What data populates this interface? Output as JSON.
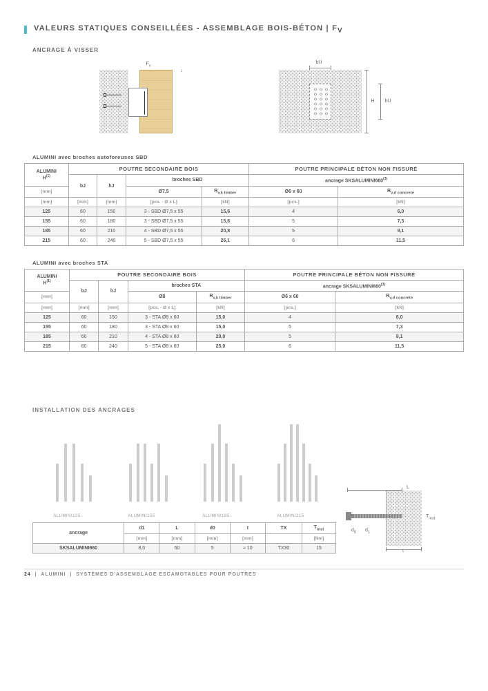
{
  "title": "VALEURS STATIQUES CONSEILLÉES - ASSEMBLAGE BOIS-BÉTON | F",
  "title_sub": "v",
  "subtitle_anchor": "ANCRAGE À VISSER",
  "diag_fv_label": "Fv",
  "diag_bu_label": "bU",
  "diag_hu_label": "hU",
  "diag_H_label": "H",
  "table1_caption": "ALUMINI avec broches autoforeuses SBD",
  "table2_caption": "ALUMINI avec broches STA",
  "group_secondary": "POUTRE SECONDAIRE BOIS",
  "group_primary": "POUTRE PRINCIPALE BÉTON NON FISSURÉ",
  "col_alumini": "ALUMINI",
  "col_H": "H",
  "sup1": "(1)",
  "col_bJ": "bJ",
  "col_hJ": "hJ",
  "col_broches_sbd": "broches SBD",
  "col_broches_sta": "broches STA",
  "col_d75": "Ø7,5",
  "col_d8": "Ø8",
  "col_Rvk": "R",
  "col_Rvk_sub": "v,k timber",
  "col_anchor": "ancrage SKSALUMINI660",
  "sup3": "(3)",
  "col_d6x60": "Ø6 x 60",
  "col_Rvd": "R",
  "col_Rvd_sub": "v,d concrete",
  "unit_mm": "[mm]",
  "unit_pcs_dl": "[pcs. - Ø x L]",
  "unit_pcs": "[pcs.]",
  "unit_kn": "[kN]",
  "t1_rows": [
    {
      "H": "125",
      "bJ": "60",
      "hJ": "150",
      "d": "3 - SBD Ø7,5 x 55",
      "rvk": "15,6",
      "an": "4",
      "rvd": "6,0"
    },
    {
      "H": "155",
      "bJ": "60",
      "hJ": "180",
      "d": "3 - SBD Ø7,5 x 55",
      "rvk": "15,6",
      "an": "5",
      "rvd": "7,3"
    },
    {
      "H": "185",
      "bJ": "60",
      "hJ": "210",
      "d": "4 - SBD Ø7,5 x 55",
      "rvk": "20,8",
      "an": "5",
      "rvd": "9,1"
    },
    {
      "H": "215",
      "bJ": "60",
      "hJ": "240",
      "d": "5 - SBD Ø7,5 x 55",
      "rvk": "26,1",
      "an": "6",
      "rvd": "11,5"
    }
  ],
  "t2_rows": [
    {
      "H": "125",
      "bJ": "60",
      "hJ": "150",
      "d": "3 - STA Ø8 x 60",
      "rvk": "15,0",
      "an": "4",
      "rvd": "6,0"
    },
    {
      "H": "155",
      "bJ": "60",
      "hJ": "180",
      "d": "3 - STA Ø8 x 60",
      "rvk": "15,0",
      "an": "5",
      "rvd": "7,3"
    },
    {
      "H": "185",
      "bJ": "60",
      "hJ": "210",
      "d": "4 - STA Ø8 x 60",
      "rvk": "20,0",
      "an": "5",
      "rvd": "9,1"
    },
    {
      "H": "215",
      "bJ": "60",
      "hJ": "240",
      "d": "5 - STA Ø8 x 60",
      "rvk": "25,0",
      "an": "6",
      "rvd": "11,5"
    }
  ],
  "install_title": "INSTALLATION DES ANCRAGES",
  "install_labels": [
    "ALUMINI125",
    "ALUMINI155",
    "ALUMINI185",
    "ALUMINI215"
  ],
  "install_bar_heights": [
    [
      55,
      84,
      84,
      55,
      38
    ],
    [
      55,
      84,
      84,
      55,
      84,
      38
    ],
    [
      55,
      84,
      112,
      84,
      55,
      38
    ],
    [
      55,
      84,
      112,
      112,
      84,
      55,
      38
    ]
  ],
  "anchor_col_label": "ancrage",
  "anchor_cols": [
    "d1",
    "L",
    "d0",
    "t",
    "TX",
    "Tinst"
  ],
  "anchor_units": [
    "[mm]",
    "[mm]",
    "[mm]",
    "[mm]",
    "",
    "[Nm]"
  ],
  "anchor_row_label": "SKSALUMINI660",
  "anchor_row": [
    "8,0",
    "60",
    "5",
    "≈ 10",
    "TX30",
    "15"
  ],
  "anchor_diag_L": "L",
  "anchor_diag_Tinst": "Tinst",
  "anchor_diag_d0": "d0",
  "anchor_diag_d1": "d1",
  "anchor_diag_t": "t",
  "footer_page": "24",
  "footer_alumini": "ALUMINI",
  "footer_text": "SYSTÈMES D'ASSEMBLAGE ESCAMOTABLES POUR POUTRES"
}
